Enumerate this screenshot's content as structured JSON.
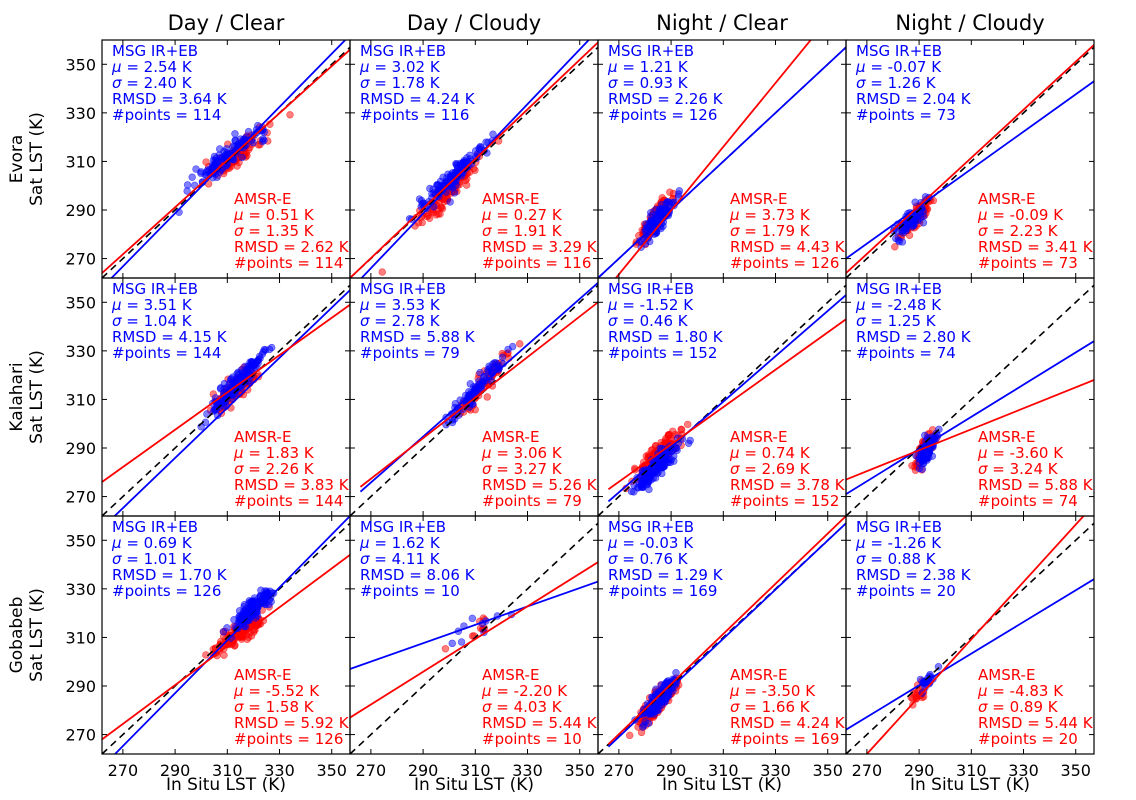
{
  "chart_data": {
    "type": "scatter",
    "column_titles": [
      "Day / Clear",
      "Day / Cloudy",
      "Night / Clear",
      "Night / Cloudy"
    ],
    "row_labels": [
      {
        "site": "Evora",
        "ylabel": "Sat LST (K)"
      },
      {
        "site": "Kalahari",
        "ylabel": "Sat LST (K)"
      },
      {
        "site": "Gobabeb",
        "ylabel": "Sat LST (K)"
      }
    ],
    "xlabel": "In Situ LST (K)",
    "xlim": [
      262,
      357
    ],
    "ylim": [
      262,
      360
    ],
    "xticks": [
      270,
      290,
      310,
      330,
      350
    ],
    "yticks": [
      270,
      290,
      310,
      330,
      350
    ],
    "series_colors": {
      "msg": "#0000ff",
      "amsr": "#ff0000",
      "identity": "#000000"
    },
    "series_names": {
      "msg": "MSG IR+EB",
      "amsr": "AMSR-E"
    },
    "panels": [
      {
        "row": 0,
        "col": 0,
        "msg": {
          "mu": "2.54 K",
          "sigma": "2.40 K",
          "rmsd": "3.64 K",
          "points": "114",
          "fit": [
            [
              262,
              258
            ],
            [
              357,
              362
            ]
          ],
          "cluster": {
            "cx": 311,
            "cy": 313,
            "sx": 12,
            "sy": 10,
            "n": 114
          }
        },
        "amsr": {
          "mu": "0.51 K",
          "sigma": "1.35 K",
          "rmsd": "2.62 K",
          "points": "114",
          "fit": [
            [
              262,
              264
            ],
            [
              357,
              356
            ]
          ],
          "cluster": {
            "cx": 313,
            "cy": 312,
            "sx": 9,
            "sy": 7,
            "n": 114
          }
        }
      },
      {
        "row": 0,
        "col": 1,
        "msg": {
          "mu": "3.02 K",
          "sigma": "1.78 K",
          "rmsd": "4.24 K",
          "points": "116",
          "fit": [
            [
              262,
              257
            ],
            [
              357,
              364
            ]
          ],
          "cluster": {
            "cx": 302,
            "cy": 304,
            "sx": 12,
            "sy": 13,
            "n": 116
          }
        },
        "amsr": {
          "mu": "0.27 K",
          "sigma": "1.91 K",
          "rmsd": "3.29 K",
          "points": "116",
          "fit": [
            [
              262,
              262
            ],
            [
              357,
              359
            ]
          ],
          "cluster": {
            "cx": 300,
            "cy": 298,
            "sx": 10,
            "sy": 11,
            "n": 116
          }
        }
      },
      {
        "row": 0,
        "col": 2,
        "msg": {
          "mu": "1.21 K",
          "sigma": "0.93 K",
          "rmsd": "2.26 K",
          "points": "126",
          "fit": [
            [
              262,
              262
            ],
            [
              357,
              357
            ]
          ],
          "cluster": {
            "cx": 285,
            "cy": 286,
            "sx": 5,
            "sy": 6,
            "n": 126
          }
        },
        "amsr": {
          "mu": "3.73 K",
          "sigma": "1.79 K",
          "rmsd": "4.43 K",
          "points": "126",
          "fit": [
            [
              262,
              253
            ],
            [
              345,
              362
            ]
          ],
          "cluster": {
            "cx": 284,
            "cy": 287,
            "sx": 5,
            "sy": 7,
            "n": 126
          }
        }
      },
      {
        "row": 0,
        "col": 3,
        "msg": {
          "mu": "-0.07 K",
          "sigma": "1.26 K",
          "rmsd": "2.04 K",
          "points": "73",
          "fit": [
            [
              262,
              270
            ],
            [
              357,
              343
            ]
          ],
          "cluster": {
            "cx": 287,
            "cy": 286,
            "sx": 5,
            "sy": 5,
            "n": 73
          }
        },
        "amsr": {
          "mu": "-0.09 K",
          "sigma": "2.23 K",
          "rmsd": "3.41 K",
          "points": "73",
          "fit": [
            [
              262,
              264
            ],
            [
              357,
              358
            ]
          ],
          "cluster": {
            "cx": 288,
            "cy": 286,
            "sx": 5,
            "sy": 6,
            "n": 73
          }
        }
      },
      {
        "row": 1,
        "col": 0,
        "msg": {
          "mu": "3.51 K",
          "sigma": "1.04 K",
          "rmsd": "4.15 K",
          "points": "144",
          "fit": [
            [
              262,
              257
            ],
            [
              357,
              355
            ]
          ],
          "cluster": {
            "cx": 314,
            "cy": 317,
            "sx": 8,
            "sy": 9,
            "n": 144
          }
        },
        "amsr": {
          "mu": "1.83 K",
          "sigma": "2.26 K",
          "rmsd": "3.83 K",
          "points": "144",
          "fit": [
            [
              262,
              276
            ],
            [
              357,
              349
            ]
          ],
          "cluster": {
            "cx": 313,
            "cy": 314,
            "sx": 7,
            "sy": 6,
            "n": 144
          }
        }
      },
      {
        "row": 1,
        "col": 1,
        "msg": {
          "mu": "3.53 K",
          "sigma": "2.78 K",
          "rmsd": "5.88 K",
          "points": "79",
          "fit": [
            [
              266,
              272
            ],
            [
              357,
              358
            ]
          ],
          "cluster": {
            "cx": 310,
            "cy": 314,
            "sx": 9,
            "sy": 11,
            "n": 79
          }
        },
        "amsr": {
          "mu": "3.06 K",
          "sigma": "3.27 K",
          "rmsd": "5.26 K",
          "points": "79",
          "fit": [
            [
              266,
              274
            ],
            [
              357,
              350
            ]
          ],
          "cluster": {
            "cx": 313,
            "cy": 316,
            "sx": 8,
            "sy": 10,
            "n": 79
          }
        }
      },
      {
        "row": 1,
        "col": 2,
        "msg": {
          "mu": "-1.52 K",
          "sigma": "0.46 K",
          "rmsd": "1.80 K",
          "points": "152",
          "fit": [
            [
              266,
              268
            ],
            [
              357,
              353
            ]
          ],
          "cluster": {
            "cx": 285,
            "cy": 283,
            "sx": 7,
            "sy": 7,
            "n": 152
          }
        },
        "amsr": {
          "mu": "0.74 K",
          "sigma": "2.69 K",
          "rmsd": "3.78 K",
          "points": "152",
          "fit": [
            [
              266,
              273
            ],
            [
              357,
              343
            ]
          ],
          "cluster": {
            "cx": 285,
            "cy": 287,
            "sx": 8,
            "sy": 8,
            "n": 152
          }
        }
      },
      {
        "row": 1,
        "col": 3,
        "msg": {
          "mu": "-2.48 K",
          "sigma": "1.25 K",
          "rmsd": "2.80 K",
          "points": "74",
          "fit": [
            [
              262,
              271
            ],
            [
              357,
              334
            ]
          ],
          "cluster": {
            "cx": 293,
            "cy": 289,
            "sx": 3,
            "sy": 4,
            "n": 74
          }
        },
        "amsr": {
          "mu": "-3.60 K",
          "sigma": "3.24 K",
          "rmsd": "5.88 K",
          "points": "74",
          "fit": [
            [
              262,
              277
            ],
            [
              357,
              318
            ]
          ],
          "cluster": {
            "cx": 292,
            "cy": 289,
            "sx": 3,
            "sy": 5,
            "n": 74
          }
        }
      },
      {
        "row": 2,
        "col": 0,
        "msg": {
          "mu": "0.69 K",
          "sigma": "1.01 K",
          "rmsd": "1.70 K",
          "points": "126",
          "fit": [
            [
              267,
              262
            ],
            [
              357,
              360
            ]
          ],
          "cluster": {
            "cx": 320,
            "cy": 322,
            "sx": 6,
            "sy": 6,
            "n": 126
          }
        },
        "amsr": {
          "mu": "-5.52 K",
          "sigma": "1.58 K",
          "rmsd": "5.92 K",
          "points": "126",
          "fit": [
            [
              262,
              268
            ],
            [
              357,
              344
            ]
          ],
          "cluster": {
            "cx": 315,
            "cy": 312,
            "sx": 8,
            "sy": 6,
            "n": 126
          }
        }
      },
      {
        "row": 2,
        "col": 1,
        "msg": {
          "mu": "1.62 K",
          "sigma": "4.11 K",
          "rmsd": "8.06 K",
          "points": "10",
          "fit": [
            [
              262,
              297
            ],
            [
              357,
              333
            ]
          ],
          "cluster": {
            "cx": 310,
            "cy": 314,
            "sx": 10,
            "sy": 5,
            "n": 10
          }
        },
        "amsr": {
          "mu": "-2.20 K",
          "sigma": "4.03 K",
          "rmsd": "5.44 K",
          "points": "10",
          "fit": [
            [
              262,
              277
            ],
            [
              357,
              341
            ]
          ],
          "cluster": {
            "cx": 310,
            "cy": 313,
            "sx": 10,
            "sy": 7,
            "n": 10
          }
        }
      },
      {
        "row": 2,
        "col": 2,
        "msg": {
          "mu": "-0.03 K",
          "sigma": "0.76 K",
          "rmsd": "1.29 K",
          "points": "169",
          "fit": [
            [
              266,
              265
            ],
            [
              357,
              357
            ]
          ],
          "cluster": {
            "cx": 285,
            "cy": 284,
            "sx": 5,
            "sy": 6,
            "n": 169
          }
        },
        "amsr": {
          "mu": "-3.50 K",
          "sigma": "1.66 K",
          "rmsd": "4.24 K",
          "points": "169",
          "fit": [
            [
              266,
              266
            ],
            [
              357,
              360
            ]
          ],
          "cluster": {
            "cx": 284,
            "cy": 282,
            "sx": 6,
            "sy": 6,
            "n": 169
          }
        }
      },
      {
        "row": 2,
        "col": 3,
        "msg": {
          "mu": "-1.26 K",
          "sigma": "0.88 K",
          "rmsd": "2.38 K",
          "points": "20",
          "fit": [
            [
              262,
              272
            ],
            [
              357,
              334
            ]
          ],
          "cluster": {
            "cx": 293,
            "cy": 292,
            "sx": 3,
            "sy": 3,
            "n": 20
          }
        },
        "amsr": {
          "mu": "-4.83 K",
          "sigma": "0.89 K",
          "rmsd": "5.44 K",
          "points": "20",
          "fit": [
            [
              270,
              262
            ],
            [
              353,
              360
            ]
          ],
          "cluster": {
            "cx": 290,
            "cy": 287,
            "sx": 3,
            "sy": 4,
            "n": 20
          }
        }
      }
    ]
  }
}
